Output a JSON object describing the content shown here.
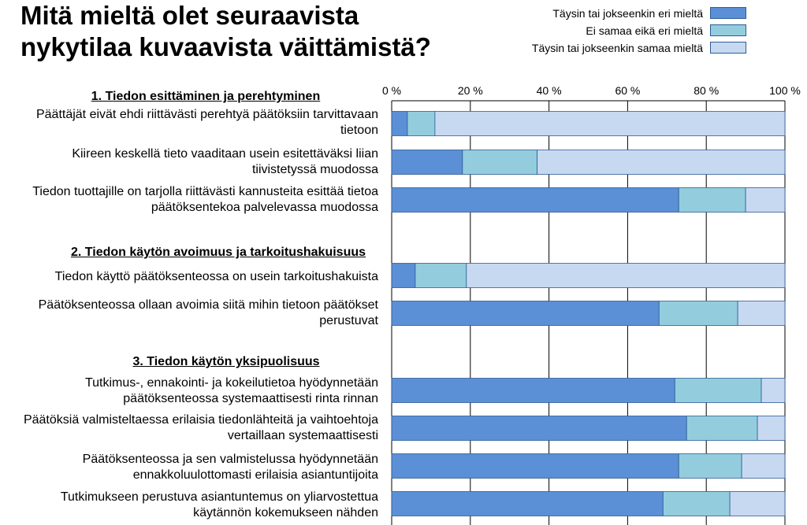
{
  "title_lines": [
    "Mitä mieltä olet seuraavista",
    "nykytilaa kuvaavista väittämistä?"
  ],
  "legend": [
    {
      "label": "Täysin tai jokseenkin eri mieltä",
      "color": "#5b8fd6"
    },
    {
      "label": "Ei samaa eikä eri mieltä",
      "color": "#93cddd"
    },
    {
      "label": "Täysin tai jokseenkin samaa mieltä",
      "color": "#c7d9f1"
    }
  ],
  "sections": [
    {
      "heading": "1. Tiedon esittäminen ja perehtyminen"
    },
    {
      "heading": "2. Tiedon käytön avoimuus ja tarkoitushakuisuus"
    },
    {
      "heading": "3. Tiedon käytön yksipuolisuus"
    }
  ],
  "row_labels": [
    [
      "Päättäjät eivät ehdi riittävästi perehtyä päätöksiin tarvittavaan",
      "tietoon"
    ],
    [
      "Kiireen keskellä tieto vaaditaan usein esitettäväksi liian",
      "tiivistetyssä muodossa"
    ],
    [
      "Tiedon tuottajille on tarjolla riittävästi kannusteita esittää tietoa",
      "päätöksentekoa palvelevassa muodossa"
    ],
    [
      "Tiedon käyttö päätöksenteossa on usein tarkoitushakuista"
    ],
    [
      "Päätöksenteossa ollaan avoimia siitä mihin tietoon päätökset",
      "perustuvat"
    ],
    [
      "Tutkimus-, ennakointi- ja kokeilutietoa hyödynnetään",
      "päätöksenteossa systemaattisesti rinta rinnan"
    ],
    [
      "Päätöksiä valmisteltaessa erilaisia tiedonlähteitä ja vaihtoehtoja",
      "vertaillaan systemaattisesti"
    ],
    [
      "Päätöksenteossa ja sen valmistelussa hyödynnetään",
      "ennakkoluulottomasti erilaisia asiantuntijoita"
    ],
    [
      "Tutkimukseen perustuva asiantuntemus on yliarvostettua",
      "käytännön kokemukseen nähden"
    ]
  ],
  "chart_data": {
    "type": "bar",
    "orientation": "horizontal",
    "stacked": true,
    "xlim": [
      0,
      100
    ],
    "x_ticks": [
      "0 %",
      "20 %",
      "40 %",
      "60 %",
      "80 %",
      "100 %"
    ],
    "grid": true,
    "legend_position": "top-right",
    "series": [
      {
        "name": "Täysin tai jokseenkin eri mieltä",
        "color": "#5b8fd6",
        "values": [
          4,
          18,
          73,
          6,
          68,
          72,
          75,
          73,
          69
        ]
      },
      {
        "name": "Ei samaa eikä eri mieltä",
        "color": "#93cddd",
        "values": [
          7,
          19,
          17,
          13,
          20,
          22,
          18,
          16,
          17
        ]
      },
      {
        "name": "Täysin tai jokseenkin samaa mieltä",
        "color": "#c7d9f1",
        "values": [
          89,
          63,
          10,
          81,
          12,
          6,
          7,
          11,
          14
        ]
      }
    ]
  }
}
